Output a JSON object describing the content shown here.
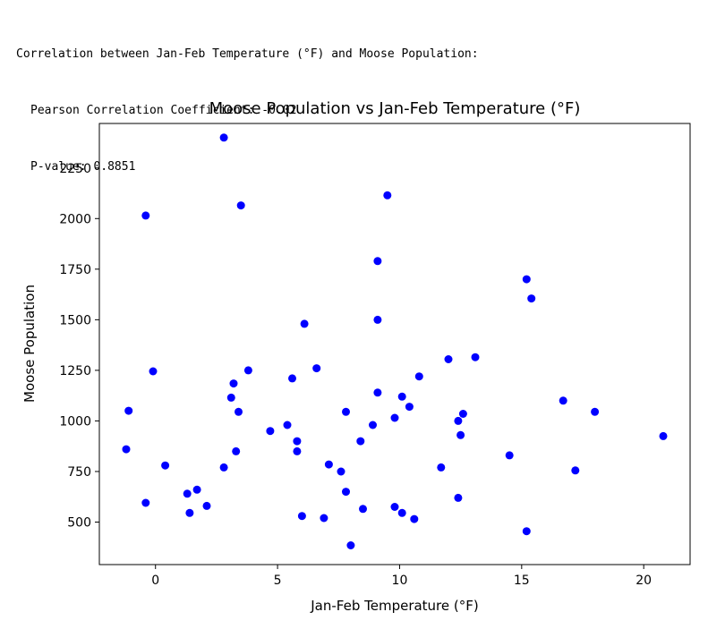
{
  "output": {
    "heading": "Correlation between Jan-Feb Temperature (°F) and Moose Population:",
    "pearson_line": "Pearson Correlation Coefficient: -0.02",
    "pvalue_line": "P-value: 0.8851"
  },
  "chart_data": {
    "type": "scatter",
    "title": "Moose Population vs Jan-Feb Temperature (°F)",
    "xlabel": "Jan-Feb Temperature (°F)",
    "ylabel": "Moose Population",
    "xlim": [
      -2.3,
      21.9
    ],
    "ylim": [
      290,
      2470
    ],
    "xticks": [
      0,
      5,
      10,
      15,
      20
    ],
    "yticks": [
      500,
      750,
      1000,
      1250,
      1500,
      1750,
      2000,
      2250
    ],
    "grid": false,
    "marker_color": "#0000ff",
    "points": [
      [
        2.8,
        2400
      ],
      [
        -0.4,
        2015
      ],
      [
        3.5,
        2065
      ],
      [
        9.5,
        2115
      ],
      [
        9.1,
        1790
      ],
      [
        15.2,
        1700
      ],
      [
        15.4,
        1605
      ],
      [
        9.1,
        1500
      ],
      [
        6.1,
        1480
      ],
      [
        13.1,
        1315
      ],
      [
        12.0,
        1305
      ],
      [
        -0.1,
        1245
      ],
      [
        3.8,
        1250
      ],
      [
        6.6,
        1260
      ],
      [
        10.8,
        1220
      ],
      [
        5.6,
        1210
      ],
      [
        3.2,
        1185
      ],
      [
        3.1,
        1115
      ],
      [
        9.1,
        1140
      ],
      [
        10.1,
        1120
      ],
      [
        16.7,
        1100
      ],
      [
        -1.1,
        1050
      ],
      [
        3.4,
        1045
      ],
      [
        7.8,
        1045
      ],
      [
        10.4,
        1070
      ],
      [
        18.0,
        1045
      ],
      [
        12.6,
        1035
      ],
      [
        9.8,
        1015
      ],
      [
        12.4,
        1000
      ],
      [
        5.4,
        980
      ],
      [
        8.9,
        980
      ],
      [
        4.7,
        950
      ],
      [
        12.5,
        930
      ],
      [
        20.8,
        925
      ],
      [
        5.8,
        900
      ],
      [
        8.4,
        900
      ],
      [
        -1.2,
        860
      ],
      [
        5.8,
        850
      ],
      [
        3.3,
        850
      ],
      [
        14.5,
        830
      ],
      [
        0.4,
        780
      ],
      [
        7.1,
        785
      ],
      [
        2.8,
        770
      ],
      [
        7.6,
        750
      ],
      [
        11.7,
        770
      ],
      [
        17.2,
        755
      ],
      [
        1.7,
        660
      ],
      [
        7.8,
        650
      ],
      [
        1.3,
        640
      ],
      [
        12.4,
        620
      ],
      [
        -0.4,
        595
      ],
      [
        2.1,
        580
      ],
      [
        9.8,
        575
      ],
      [
        8.5,
        565
      ],
      [
        1.4,
        545
      ],
      [
        6.0,
        530
      ],
      [
        10.1,
        545
      ],
      [
        6.9,
        520
      ],
      [
        10.6,
        515
      ],
      [
        15.2,
        455
      ],
      [
        8.0,
        385
      ]
    ]
  }
}
